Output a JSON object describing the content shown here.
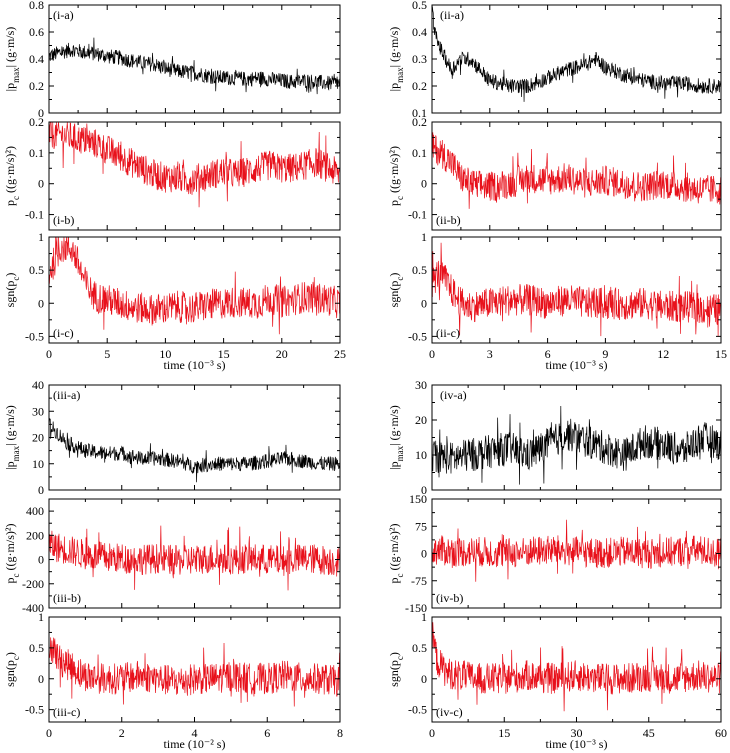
{
  "colors": {
    "black_series": "#000000",
    "red_series": "#e8111b",
    "frame": "#000000"
  },
  "chart_data": [
    {
      "group": "i",
      "type": "line",
      "title": "",
      "xlabel": "time (10⁻³ s)",
      "xlim": [
        0,
        25
      ],
      "xticks": [
        0,
        5,
        10,
        15,
        20,
        25
      ],
      "panels": [
        {
          "tag": "(i-a)",
          "ylabel": "|pmax| (g·m/s)",
          "ylim": [
            0.0,
            0.8
          ],
          "yticks": [
            0,
            0.2,
            0.4,
            0.6,
            0.8
          ],
          "ytick_labels": [
            "0",
            "0.2",
            "0.4",
            "0.6",
            "0.8"
          ],
          "color": "black",
          "series": [
            {
              "x": [
                0,
                1,
                2,
                3,
                4,
                5,
                6,
                7,
                8,
                9,
                10,
                11,
                12,
                13,
                14,
                15,
                16,
                17,
                18,
                19,
                20,
                21,
                22,
                23,
                24,
                25
              ],
              "y": [
                0.42,
                0.45,
                0.47,
                0.45,
                0.44,
                0.42,
                0.41,
                0.39,
                0.37,
                0.36,
                0.33,
                0.31,
                0.3,
                0.29,
                0.27,
                0.26,
                0.26,
                0.25,
                0.26,
                0.25,
                0.24,
                0.23,
                0.24,
                0.23,
                0.22,
                0.22
              ]
            }
          ]
        },
        {
          "tag": "(i-b)",
          "ylabel": "pc ((g·m/s)²)",
          "ylim": [
            -0.15,
            0.2
          ],
          "yticks": [
            -0.1,
            0,
            0.1,
            0.2
          ],
          "ytick_labels": [
            "-0.1",
            "0",
            "0.1",
            "0.2"
          ],
          "color": "red",
          "series": [
            {
              "x": [
                0,
                1,
                2,
                3,
                4,
                5,
                6,
                7,
                8,
                9,
                10,
                11,
                12,
                13,
                14,
                15,
                16,
                17,
                18,
                19,
                20,
                21,
                22,
                23,
                24,
                25
              ],
              "y": [
                0.16,
                0.16,
                0.15,
                0.14,
                0.13,
                0.11,
                0.09,
                0.07,
                0.05,
                0.03,
                0.02,
                0.02,
                0.01,
                0.02,
                0.03,
                0.04,
                0.03,
                0.04,
                0.05,
                0.06,
                0.05,
                0.05,
                0.06,
                0.07,
                0.05,
                0.03
              ]
            }
          ]
        },
        {
          "tag": "(i-c)",
          "ylabel": "sgn(pc)",
          "ylim": [
            -0.6,
            1.0
          ],
          "yticks": [
            -0.5,
            0,
            0.5,
            1
          ],
          "ytick_labels": [
            "-0.5",
            "0",
            "0.5",
            "1"
          ],
          "color": "red",
          "series": [
            {
              "x": [
                0,
                1,
                1.5,
                2,
                2.5,
                3,
                3.5,
                4,
                5,
                6,
                7,
                8,
                9,
                10,
                11,
                12,
                13,
                14,
                15,
                16,
                17,
                18,
                19,
                20,
                21,
                22,
                23,
                24,
                25
              ],
              "y": [
                0.45,
                0.85,
                0.85,
                0.82,
                0.6,
                0.35,
                0.2,
                0.1,
                0.05,
                0.0,
                -0.05,
                -0.08,
                -0.1,
                -0.08,
                -0.05,
                -0.08,
                -0.05,
                -0.02,
                0.0,
                0.02,
                0.0,
                0.0,
                0.08,
                0.02,
                0.05,
                0.1,
                0.08,
                0.05,
                0.0
              ]
            }
          ]
        }
      ]
    },
    {
      "group": "ii",
      "type": "line",
      "title": "",
      "xlabel": "time (10⁻³ s)",
      "xlim": [
        0,
        15
      ],
      "xticks": [
        0,
        3,
        6,
        9,
        12,
        15
      ],
      "panels": [
        {
          "tag": "(ii-a)",
          "ylabel": "|pmax| (g·m/s)",
          "ylim": [
            0.1,
            0.5
          ],
          "yticks": [
            0.1,
            0.2,
            0.3,
            0.4,
            0.5
          ],
          "ytick_labels": [
            "0.1",
            "0.2",
            "0.3",
            "0.4",
            "0.5"
          ],
          "color": "black",
          "series": [
            {
              "x": [
                0,
                0.2,
                0.5,
                1,
                1.5,
                2,
                3,
                4,
                5,
                6,
                7,
                8,
                8.5,
                9,
                10,
                11,
                12,
                13,
                14,
                15
              ],
              "y": [
                0.48,
                0.38,
                0.33,
                0.26,
                0.3,
                0.3,
                0.22,
                0.2,
                0.2,
                0.23,
                0.26,
                0.28,
                0.3,
                0.27,
                0.24,
                0.22,
                0.21,
                0.21,
                0.2,
                0.2
              ]
            }
          ]
        },
        {
          "tag": "(ii-b)",
          "ylabel": "pc ((g·m/s)²)",
          "ylim": [
            -0.15,
            0.2
          ],
          "yticks": [
            -0.1,
            0,
            0.1,
            0.2
          ],
          "ytick_labels": [
            "-0.1",
            "0",
            "0.1",
            "0.2"
          ],
          "color": "red",
          "series": [
            {
              "x": [
                0,
                0.5,
                1,
                1.5,
                2,
                3,
                4,
                5,
                6,
                7,
                8,
                9,
                10,
                11,
                12,
                13,
                14,
                15
              ],
              "y": [
                0.12,
                0.1,
                0.07,
                0.02,
                0.0,
                -0.01,
                0.0,
                0.02,
                0.01,
                0.02,
                0.0,
                0.01,
                0.0,
                -0.01,
                0.0,
                -0.01,
                -0.02,
                -0.02
              ]
            }
          ]
        },
        {
          "tag": "(ii-c)",
          "ylabel": "sgn(pc)",
          "ylim": [
            -0.6,
            1.0
          ],
          "yticks": [
            -0.5,
            0,
            0.5,
            1
          ],
          "ytick_labels": [
            "-0.5",
            "0",
            "0.5",
            "1"
          ],
          "color": "red",
          "series": [
            {
              "x": [
                0,
                0.3,
                0.6,
                1,
                1.5,
                2,
                3,
                4,
                5,
                6,
                7,
                8,
                9,
                10,
                11,
                12,
                13,
                14,
                15
              ],
              "y": [
                0.3,
                0.45,
                0.4,
                0.2,
                0.0,
                -0.05,
                0.0,
                0.05,
                0.05,
                0.0,
                0.05,
                0.0,
                0.0,
                -0.02,
                0.0,
                -0.05,
                -0.05,
                -0.08,
                -0.1
              ]
            }
          ]
        }
      ]
    },
    {
      "group": "iii",
      "type": "line",
      "title": "",
      "xlabel": "time (10⁻² s)",
      "xlim": [
        0,
        8
      ],
      "xticks": [
        0,
        2,
        4,
        6,
        8
      ],
      "panels": [
        {
          "tag": "(iii-a)",
          "ylabel": "|pmax| (g·m/s)",
          "ylim": [
            0,
            40
          ],
          "yticks": [
            0,
            10,
            20,
            30,
            40
          ],
          "ytick_labels": [
            "0",
            "10",
            "20",
            "30",
            "40"
          ],
          "color": "black",
          "series": [
            {
              "x": [
                0,
                0.5,
                1,
                1.5,
                2,
                2.5,
                3,
                3.5,
                4,
                4.5,
                5,
                5.5,
                6,
                6.5,
                7,
                7.5,
                8
              ],
              "y": [
                25,
                18,
                15,
                14,
                14,
                12,
                12,
                11,
                9,
                10,
                10,
                10,
                11,
                12,
                11,
                10,
                10
              ]
            }
          ]
        },
        {
          "tag": "(iii-b)",
          "ylabel": "pc ((g·m/s)²)",
          "ylim": [
            -400,
            500
          ],
          "yticks": [
            -400,
            -200,
            0,
            200,
            400
          ],
          "ytick_labels": [
            "-400",
            "-200",
            "0",
            "200",
            "400"
          ],
          "color": "red",
          "series": [
            {
              "x": [
                0,
                0.5,
                1,
                1.5,
                2,
                2.5,
                3,
                3.5,
                4,
                4.5,
                5,
                5.5,
                6,
                6.5,
                7,
                7.5,
                8
              ],
              "y": [
                120,
                80,
                40,
                20,
                10,
                0,
                10,
                -10,
                0,
                10,
                0,
                10,
                0,
                -10,
                10,
                0,
                -20
              ]
            }
          ]
        },
        {
          "tag": "(iii-c)",
          "ylabel": "sgn(pc)",
          "ylim": [
            -0.7,
            1.0
          ],
          "yticks": [
            -0.5,
            0,
            0.5,
            1
          ],
          "ytick_labels": [
            "-0.5",
            "0",
            "0.5",
            "1"
          ],
          "color": "red",
          "series": [
            {
              "x": [
                0,
                0.3,
                0.6,
                1,
                1.5,
                2,
                2.5,
                3,
                3.5,
                4,
                4.5,
                5,
                5.5,
                6,
                6.5,
                7,
                7.5,
                8
              ],
              "y": [
                0.6,
                0.3,
                0.2,
                0.05,
                0.0,
                0.0,
                0.05,
                0.0,
                -0.05,
                0.0,
                0.0,
                0.05,
                0.0,
                0.0,
                0.05,
                0.0,
                0.0,
                -0.05
              ]
            }
          ]
        }
      ]
    },
    {
      "group": "iv",
      "type": "line",
      "title": "",
      "xlabel": "time (10⁻³ s)",
      "xlim": [
        0,
        60
      ],
      "xticks": [
        0,
        15,
        30,
        45,
        60
      ],
      "panels": [
        {
          "tag": "(iv-a)",
          "ylabel": "|pmax| (g·m/s)",
          "ylim": [
            0,
            30
          ],
          "yticks": [
            0,
            10,
            20,
            30
          ],
          "ytick_labels": [
            "0",
            "10",
            "20",
            "30"
          ],
          "color": "black",
          "series": [
            {
              "x": [
                0,
                4,
                8,
                12,
                16,
                20,
                24,
                28,
                32,
                36,
                40,
                44,
                48,
                52,
                56,
                60
              ],
              "y": [
                10,
                9,
                10,
                11,
                12,
                10,
                13,
                16,
                14,
                12,
                10,
                14,
                13,
                11,
                15,
                13
              ]
            }
          ]
        },
        {
          "tag": "(iv-b)",
          "ylabel": "pc ((g·m/s)²)",
          "ylim": [
            -150,
            150
          ],
          "yticks": [
            -150,
            -75,
            0,
            75,
            150
          ],
          "ytick_labels": [
            "-150",
            "-75",
            "0",
            "75",
            "150"
          ],
          "color": "red",
          "series": [
            {
              "x": [
                0,
                5,
                10,
                15,
                20,
                25,
                30,
                35,
                40,
                45,
                50,
                55,
                60
              ],
              "y": [
                10,
                5,
                5,
                0,
                5,
                10,
                5,
                0,
                5,
                0,
                5,
                10,
                0
              ]
            }
          ]
        },
        {
          "tag": "(iv-c)",
          "ylabel": "sgn(pc)",
          "ylim": [
            -0.7,
            1.0
          ],
          "yticks": [
            -0.5,
            0,
            0.5,
            1
          ],
          "ytick_labels": [
            "-0.5",
            "0",
            "0.5",
            "1"
          ],
          "color": "red",
          "series": [
            {
              "x": [
                0,
                1,
                3,
                6,
                10,
                15,
                20,
                25,
                30,
                35,
                40,
                45,
                50,
                55,
                60
              ],
              "y": [
                0.8,
                0.3,
                0.1,
                0.05,
                0.0,
                0.0,
                0.05,
                0.0,
                0.05,
                0.0,
                0.0,
                0.05,
                0.0,
                0.05,
                0.0
              ]
            }
          ]
        }
      ]
    }
  ]
}
